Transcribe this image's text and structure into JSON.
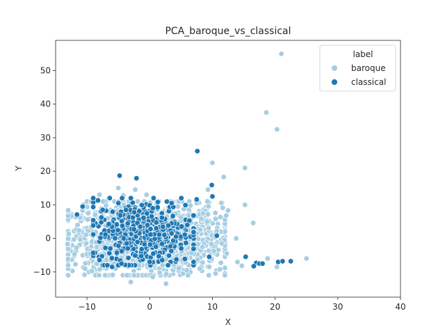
{
  "chart_data": {
    "type": "scatter",
    "title": "PCA_baroque_vs_classical",
    "xlabel": "X",
    "ylabel": "Y",
    "xlim": [
      -15,
      40
    ],
    "ylim": [
      -17.5,
      59
    ],
    "xticks": [
      -10,
      0,
      10,
      20,
      30,
      40
    ],
    "yticks": [
      -10,
      0,
      10,
      20,
      30,
      40,
      50
    ],
    "xtick_labels": [
      "−10",
      "0",
      "10",
      "20",
      "30",
      "40"
    ],
    "ytick_labels": [
      "−10",
      "0",
      "10",
      "20",
      "30",
      "40",
      "50"
    ],
    "grid": false,
    "legend": {
      "title": "label",
      "placement": "top-right",
      "entries": [
        "baroque",
        "classical"
      ]
    },
    "colors": {
      "baroque": "#a6cee3",
      "classical": "#1f78b4"
    },
    "series": [
      {
        "name": "baroque",
        "color": "#a6cee3",
        "points": [
          [
            21,
            55
          ],
          [
            18.6,
            37.5
          ],
          [
            20.3,
            32.5
          ],
          [
            10,
            22.5
          ],
          [
            15.2,
            21
          ],
          [
            11.8,
            18.3
          ],
          [
            9.3,
            14.5
          ],
          [
            15.2,
            10
          ],
          [
            12.5,
            8.3
          ],
          [
            9.3,
            7.2
          ],
          [
            12.2,
            6.8
          ],
          [
            16.5,
            4.6
          ],
          [
            10.7,
            2.2
          ],
          [
            13.8,
            0
          ],
          [
            11.5,
            -1.5
          ],
          [
            12.3,
            -4.5
          ],
          [
            14,
            -7
          ],
          [
            14.7,
            -8.2
          ],
          [
            18.8,
            -6
          ],
          [
            25,
            -6
          ],
          [
            20.3,
            -8.5
          ],
          [
            -12.9,
            1.3
          ],
          [
            -13.1,
            -1.7
          ],
          [
            -12,
            -4.7
          ],
          [
            -10.3,
            -9
          ],
          [
            -11.5,
            4
          ],
          [
            -9.8,
            7.5
          ],
          [
            -8,
            13
          ],
          [
            -6.5,
            12
          ],
          [
            -5,
            15
          ],
          [
            -4.2,
            12.8
          ],
          [
            -2.3,
            14.5
          ],
          [
            -0.5,
            13
          ],
          [
            1.5,
            11
          ],
          [
            3,
            9.2
          ],
          [
            4.5,
            9.5
          ],
          [
            6.5,
            9.8
          ],
          [
            7.5,
            10.5
          ],
          [
            8.5,
            7.5
          ],
          [
            -3,
            -13
          ],
          [
            2.6,
            -13.5
          ],
          [
            0.5,
            -11.5
          ],
          [
            -2.5,
            -11
          ],
          [
            5.3,
            -10.5
          ],
          [
            8,
            -9
          ],
          [
            9.5,
            -8.5
          ],
          [
            10.5,
            -10.5
          ],
          [
            11.2,
            -9.2
          ]
        ],
        "cluster": {
          "cx": [
            -13,
            12
          ],
          "cy": [
            -11,
            11
          ],
          "count": 1600
        }
      },
      {
        "name": "classical",
        "color": "#1f78b4",
        "points": [
          [
            7.6,
            26
          ],
          [
            -4.8,
            18.7
          ],
          [
            -2.1,
            17.9
          ],
          [
            9.9,
            15.9
          ],
          [
            10,
            12.5
          ],
          [
            7.5,
            11.6
          ],
          [
            5.7,
            9.9
          ],
          [
            3.5,
            10.5
          ],
          [
            -11.6,
            7.1
          ],
          [
            -10.7,
            9.5
          ],
          [
            -7.5,
            8.5
          ],
          [
            -5,
            10.5
          ],
          [
            -3,
            12
          ],
          [
            0.5,
            9
          ],
          [
            10.7,
            0.8
          ],
          [
            6,
            4
          ],
          [
            15.3,
            -5.5
          ],
          [
            17,
            -7.3
          ],
          [
            17.5,
            -7.5
          ],
          [
            18,
            -7.5
          ],
          [
            20.5,
            -7
          ],
          [
            21.2,
            -6.8
          ],
          [
            22.5,
            -6.8
          ],
          [
            16.6,
            -8.3
          ],
          [
            9.5,
            -5.5
          ],
          [
            7,
            -7
          ],
          [
            -6,
            -8.5
          ],
          [
            -4.5,
            -7.5
          ],
          [
            0,
            -7
          ],
          [
            2,
            -6.5
          ],
          [
            -1.5,
            3.5
          ],
          [
            3.5,
            1.5
          ],
          [
            1,
            -2.5
          ],
          [
            -3.5,
            -3
          ]
        ],
        "cluster": {
          "cx": [
            -9,
            7
          ],
          "cy": [
            -8,
            12
          ],
          "count": 420
        }
      }
    ]
  }
}
